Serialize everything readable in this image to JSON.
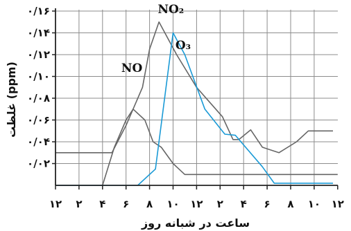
{
  "chart_data": {
    "type": "line",
    "title": "",
    "xlabel": "ساعت در شبانه روز",
    "ylabel": "غلظت (ppm)",
    "x_tick_labels": [
      "۱۲",
      "۲",
      "۴",
      "۶",
      "۸",
      "۱۰",
      "۱۲",
      "۲",
      "۴",
      "۶",
      "۸",
      "۱۰",
      "۱۲"
    ],
    "y_tick_labels": [
      "۰/۰۲",
      "۰/۰۴",
      "۰/۰۶",
      "۰/۰۸",
      "۰/۱۰",
      "۰/۱۲",
      "۰/۱۴",
      "۰/۱۶"
    ],
    "y_ticks": [
      0.02,
      0.04,
      0.06,
      0.08,
      0.1,
      0.12,
      0.14,
      0.16
    ],
    "xlim": [
      0,
      24
    ],
    "ylim": [
      0,
      0.17
    ],
    "grid": true,
    "series": [
      {
        "name": "NO",
        "color": "#666666",
        "label_at": [
          5.6,
          0.104
        ],
        "points": [
          [
            0,
            0.0
          ],
          [
            4,
            0.0
          ],
          [
            5,
            0.035
          ],
          [
            6,
            0.06
          ],
          [
            6.6,
            0.07
          ],
          [
            7.6,
            0.06
          ],
          [
            8.3,
            0.04
          ],
          [
            9,
            0.035
          ],
          [
            10,
            0.02
          ],
          [
            11,
            0.01
          ],
          [
            12,
            0.01
          ],
          [
            24,
            0.01
          ]
        ]
      },
      {
        "name": "NO₂",
        "color": "#666666",
        "label_at": [
          8.7,
          0.158
        ],
        "points": [
          [
            0,
            0.03
          ],
          [
            4.8,
            0.03
          ],
          [
            6,
            0.055
          ],
          [
            7.4,
            0.09
          ],
          [
            8,
            0.125
          ],
          [
            8.8,
            0.15
          ],
          [
            10.3,
            0.12
          ],
          [
            12,
            0.09
          ],
          [
            14.2,
            0.063
          ],
          [
            15.1,
            0.042
          ],
          [
            15.6,
            0.042
          ],
          [
            16.6,
            0.051
          ],
          [
            17.6,
            0.035
          ],
          [
            19,
            0.03
          ],
          [
            20.5,
            0.04
          ],
          [
            21.5,
            0.05
          ],
          [
            22.2,
            0.05
          ],
          [
            23.6,
            0.05
          ]
        ]
      },
      {
        "name": "O₃",
        "color": "#1a9ad6",
        "label_at": [
          10.2,
          0.125
        ],
        "points": [
          [
            0,
            0.0
          ],
          [
            7,
            0.0
          ],
          [
            8.5,
            0.015
          ],
          [
            10,
            0.14
          ],
          [
            11,
            0.12
          ],
          [
            12.7,
            0.07
          ],
          [
            14.4,
            0.047
          ],
          [
            15.3,
            0.046
          ],
          [
            17.6,
            0.017
          ],
          [
            18.6,
            0.002
          ],
          [
            20,
            0.002
          ],
          [
            22.2,
            0.002
          ],
          [
            23.6,
            0.002
          ]
        ]
      }
    ]
  }
}
